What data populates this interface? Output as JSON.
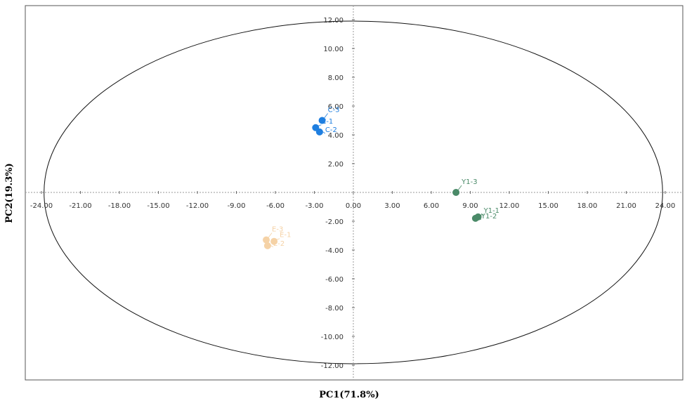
{
  "chart_data": {
    "type": "scatter",
    "xlabel": "PC1(71.8%)",
    "ylabel": "PC2(19.3%)",
    "xlim": [
      -24,
      24
    ],
    "ylim": [
      -12,
      12
    ],
    "x_ticks": [
      -24,
      -21,
      -18,
      -15,
      -12,
      -9,
      -6,
      -3,
      0,
      3,
      6,
      9,
      12,
      15,
      18,
      21,
      24
    ],
    "x_tick_labels": [
      "-24.00",
      "-21.00",
      "-18.00",
      "-15.00",
      "-12.00",
      "-9.00",
      "-6.00",
      "-3.00",
      "0.00",
      "3.00",
      "6.00",
      "9.00",
      "12.00",
      "15.00",
      "18.00",
      "21.00",
      "24.00"
    ],
    "y_ticks": [
      12,
      10,
      8,
      6,
      4,
      2,
      -2,
      -4,
      -6,
      -8,
      -10,
      -12
    ],
    "y_tick_labels": [
      "12.00",
      "10.00",
      "8.00",
      "6.00",
      "4.00",
      "2.00",
      "-2.00",
      "-4.00",
      "-6.00",
      "-8.00",
      "-10.00",
      "-12.00"
    ],
    "confidence_ellipse": {
      "center": [
        0,
        0
      ],
      "rx": 23.8,
      "ry": 11.9
    },
    "groups": [
      {
        "color": "#1f7fe0",
        "points": [
          {
            "label": "C-3",
            "x": -2.4,
            "y": 5.0
          },
          {
            "label": "C-1",
            "x": -2.9,
            "y": 4.5
          },
          {
            "label": "C-2",
            "x": -2.6,
            "y": 4.2
          }
        ]
      },
      {
        "color": "#f5d2a6",
        "points": [
          {
            "label": "E-3",
            "x": -6.7,
            "y": -3.3
          },
          {
            "label": "E-1",
            "x": -6.1,
            "y": -3.4
          },
          {
            "label": "E-2",
            "x": -6.6,
            "y": -3.7
          }
        ]
      },
      {
        "color": "#4a8a68",
        "points": [
          {
            "label": "Y1-3",
            "x": 7.9,
            "y": 0.0
          },
          {
            "label": "Y1-1",
            "x": 9.6,
            "y": -1.7
          },
          {
            "label": "Y1-2",
            "x": 9.4,
            "y": -1.8
          }
        ]
      }
    ]
  }
}
